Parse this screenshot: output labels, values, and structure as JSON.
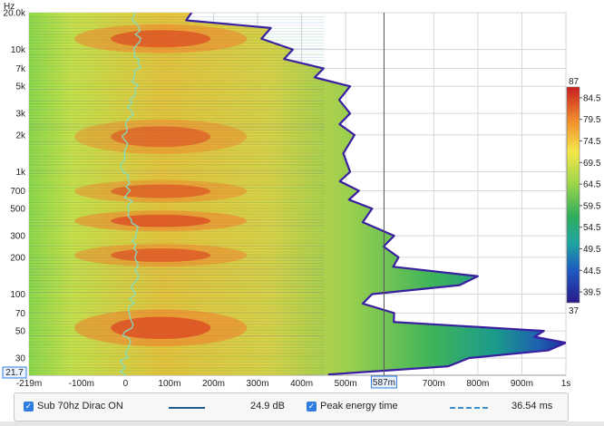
{
  "chart_data": {
    "type": "heatmap",
    "title": "",
    "ylabel": "Hz",
    "y_scale": "log",
    "y_ticks": [
      "20.0k",
      "10k",
      "7k",
      "5k",
      "3k",
      "2k",
      "1k",
      "700",
      "500",
      "300",
      "200",
      "100",
      "70",
      "50",
      "30"
    ],
    "y_min_readout": "21.7",
    "x_ticks": [
      "-219m",
      "-100m",
      "0",
      "100m",
      "200m",
      "300m",
      "400m",
      "500m",
      "587m",
      "700m",
      "800m",
      "900m",
      "1s"
    ],
    "cursor_x_readout": "587m",
    "colorbar": {
      "max_label": "87",
      "ticks": [
        "84.5",
        "79.5",
        "74.5",
        "69.5",
        "64.5",
        "59.5",
        "54.5",
        "49.5",
        "44.5",
        "39.5"
      ],
      "min_label": "37"
    },
    "decay_ms_by_band": [
      {
        "freq_hz": 20000,
        "end_ms": 150
      },
      {
        "freq_hz": 15000,
        "end_ms": 330
      },
      {
        "freq_hz": 10000,
        "end_ms": 380
      },
      {
        "freq_hz": 7000,
        "end_ms": 450
      },
      {
        "freq_hz": 5000,
        "end_ms": 510
      },
      {
        "freq_hz": 3000,
        "end_ms": 510
      },
      {
        "freq_hz": 2000,
        "end_ms": 520
      },
      {
        "freq_hz": 1000,
        "end_ms": 510
      },
      {
        "freq_hz": 700,
        "end_ms": 530
      },
      {
        "freq_hz": 500,
        "end_ms": 560
      },
      {
        "freq_hz": 300,
        "end_ms": 610
      },
      {
        "freq_hz": 200,
        "end_ms": 620
      },
      {
        "freq_hz": 140,
        "end_ms": 800
      },
      {
        "freq_hz": 100,
        "end_ms": 560
      },
      {
        "freq_hz": 70,
        "end_ms": 610
      },
      {
        "freq_hz": 50,
        "end_ms": 950
      },
      {
        "freq_hz": 40,
        "end_ms": 1000
      },
      {
        "freq_hz": 30,
        "end_ms": 780
      },
      {
        "freq_hz": 22,
        "end_ms": 460
      }
    ],
    "hot_bands_hz": [
      {
        "low": 10000,
        "high": 15000,
        "level": 0.9
      },
      {
        "low": 1500,
        "high": 2500,
        "level": 0.75
      },
      {
        "low": 600,
        "high": 800,
        "level": 0.8
      },
      {
        "low": 350,
        "high": 450,
        "level": 0.95
      },
      {
        "low": 180,
        "high": 240,
        "level": 0.85
      },
      {
        "low": 40,
        "high": 70,
        "level": 0.98
      }
    ]
  },
  "legend": {
    "series1_label": "Sub 70hz Dirac ON",
    "series1_value": "24.9 dB",
    "series1_color": "#1a5e8a",
    "series2_label": "Peak energy time",
    "series2_value": "36.54 ms",
    "series2_color": "#3a8fd0"
  },
  "colors": {
    "checkbox": "#2f7de1",
    "peak_trace": "#7fe0c8"
  }
}
